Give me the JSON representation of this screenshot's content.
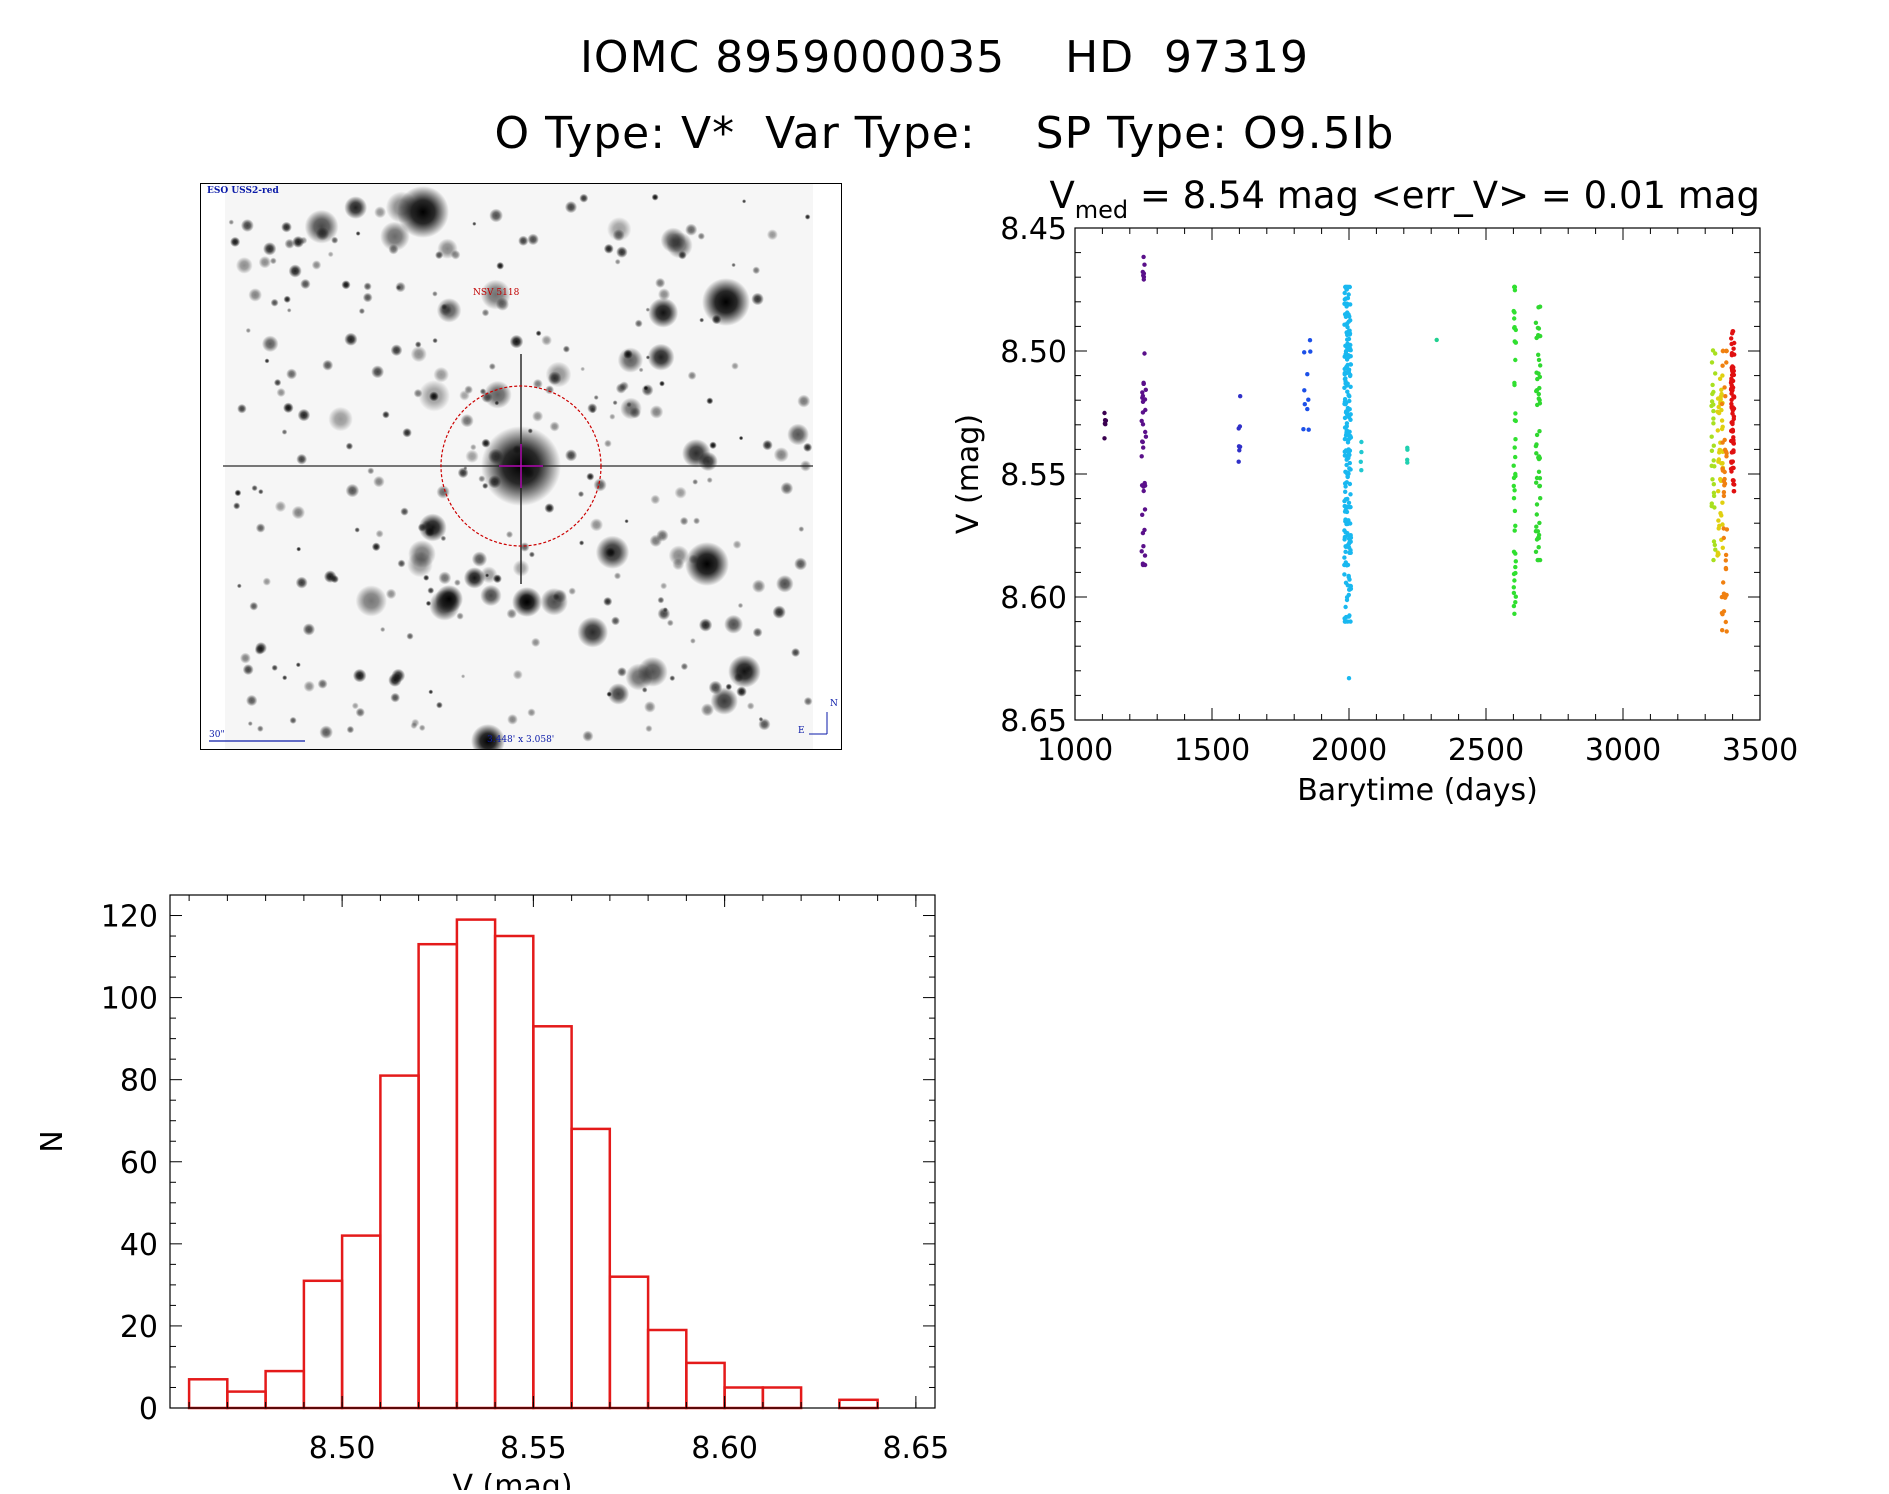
{
  "header": {
    "line1": "IOMC 8959000035    HD  97319",
    "line2": "O Type: V*  Var Type:    SP Type: O9.5Ib"
  },
  "finder": {
    "survey_label": "ESO USS2-red",
    "target_label": "NSV 5118",
    "scale_label": "30\"",
    "fov_label": "3.448' x 3.058'",
    "north_label": "N",
    "east_label": "E",
    "circle_color": "#cc0000",
    "marker_color": "#cc00cc"
  },
  "chart_data": [
    {
      "type": "scatter",
      "title_prefix": "V",
      "title_sub": "med",
      "title_rest": " = 8.54 mag <err_V> = 0.01 mag",
      "xlabel": "Barytime (days)",
      "ylabel": "V (mag)",
      "xlim": [
        1000,
        3500
      ],
      "ylim": [
        8.45,
        8.65
      ],
      "y_inverted": true,
      "xticks": [
        1000,
        1500,
        2000,
        2500,
        3000,
        3500
      ],
      "yticks": [
        "8.45",
        "8.50",
        "8.55",
        "8.60",
        "8.65"
      ],
      "groups": [
        {
          "x": 1110,
          "color": "#3a0050",
          "ymin": 8.525,
          "ymax": 8.539,
          "n": 6,
          "jitter": 3
        },
        {
          "x": 1250,
          "color": "#5a108a",
          "ymin": 8.46,
          "ymax": 8.472,
          "n": 7,
          "jitter": 4
        },
        {
          "x": 1250,
          "color": "#5a108a",
          "ymin": 8.501,
          "ymax": 8.587,
          "n": 35,
          "jitter": 9
        },
        {
          "x": 1600,
          "color": "#3030c8",
          "ymin": 8.518,
          "ymax": 8.545,
          "n": 7,
          "jitter": 3
        },
        {
          "x": 1845,
          "color": "#1c50e8",
          "ymin": 8.495,
          "ymax": 8.532,
          "n": 10,
          "jitter": 14
        },
        {
          "x": 1995,
          "color": "#19b8f0",
          "ymin": 8.474,
          "ymax": 8.61,
          "n": 220,
          "jitter": 12
        },
        {
          "x": 2000,
          "color": "#19b8f0",
          "ymin": 8.632,
          "ymax": 8.634,
          "n": 1,
          "jitter": 0
        },
        {
          "x": 2045,
          "color": "#20c8d0",
          "ymin": 8.537,
          "ymax": 8.552,
          "n": 4,
          "jitter": 4
        },
        {
          "x": 2215,
          "color": "#20d0b0",
          "ymin": 8.527,
          "ymax": 8.553,
          "n": 4,
          "jitter": 3
        },
        {
          "x": 2320,
          "color": "#20d090",
          "ymin": 8.494,
          "ymax": 8.497,
          "n": 1,
          "jitter": 0
        },
        {
          "x": 2605,
          "color": "#30e030",
          "ymin": 8.474,
          "ymax": 8.615,
          "n": 45,
          "jitter": 4
        },
        {
          "x": 2690,
          "color": "#30d830",
          "ymin": 8.482,
          "ymax": 8.585,
          "n": 55,
          "jitter": 8
        },
        {
          "x": 3330,
          "color": "#a8e020",
          "ymin": 8.493,
          "ymax": 8.585,
          "n": 30,
          "jitter": 8
        },
        {
          "x": 3355,
          "color": "#e0d010",
          "ymin": 8.51,
          "ymax": 8.585,
          "n": 45,
          "jitter": 10
        },
        {
          "x": 3370,
          "color": "#f08010",
          "ymin": 8.5,
          "ymax": 8.614,
          "n": 45,
          "jitter": 10
        },
        {
          "x": 3400,
          "color": "#e01010",
          "ymin": 8.492,
          "ymax": 8.557,
          "n": 80,
          "jitter": 6
        }
      ]
    },
    {
      "type": "bar",
      "subtype": "histogram",
      "xlabel": "V (mag)",
      "ylabel": "N",
      "xlim": [
        8.455,
        8.655
      ],
      "ylim": [
        0,
        125
      ],
      "xticks": [
        "8.50",
        "8.55",
        "8.60",
        "8.65"
      ],
      "yticks": [
        0,
        20,
        40,
        60,
        80,
        100,
        120
      ],
      "bin_width": 0.01,
      "bin_starts": [
        8.46,
        8.47,
        8.48,
        8.49,
        8.5,
        8.51,
        8.52,
        8.53,
        8.54,
        8.55,
        8.56,
        8.57,
        8.58,
        8.59,
        8.6,
        8.61,
        8.62,
        8.63
      ],
      "counts": [
        7,
        4,
        9,
        31,
        42,
        81,
        113,
        119,
        115,
        93,
        68,
        32,
        19,
        11,
        5,
        5,
        0,
        2
      ],
      "bar_color": "#e41a1a"
    }
  ]
}
